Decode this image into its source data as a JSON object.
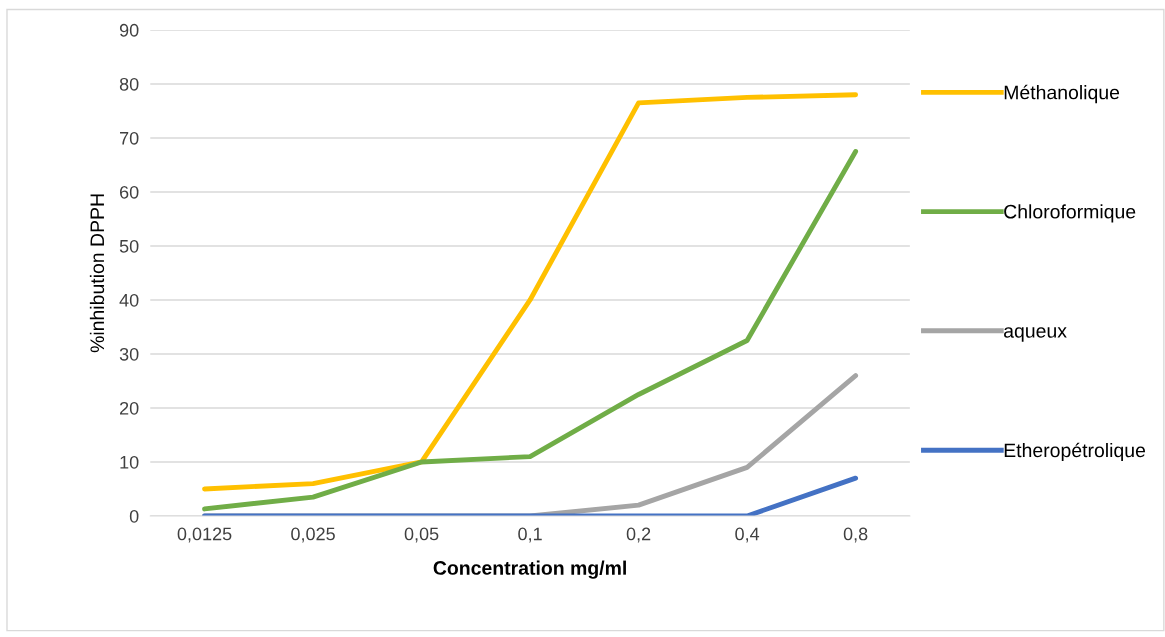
{
  "chart_data": {
    "type": "line",
    "xlabel": "Concentration mg/ml",
    "ylabel": "%inhibution DPPH",
    "categories": [
      "0,0125",
      "0,025",
      "0,05",
      "0,1",
      "0,2",
      "0,4",
      "0,8"
    ],
    "ylim": [
      0,
      90
    ],
    "yticks": [
      0,
      10,
      20,
      30,
      40,
      50,
      60,
      70,
      80,
      90
    ],
    "grid": "y",
    "legend": "right",
    "marker": "none",
    "line_style": "solid",
    "series": [
      {
        "name": "Méthanolique",
        "color": "#ffc000",
        "values": [
          5,
          6,
          10,
          40,
          76.5,
          77.5,
          78
        ]
      },
      {
        "name": "Chloroformique",
        "color": "#70ad47",
        "values": [
          1.3,
          3.5,
          10,
          11,
          22.5,
          32.5,
          67.5
        ]
      },
      {
        "name": "aqueux",
        "color": "#a5a5a5",
        "values": [
          0,
          0,
          0,
          0,
          2,
          9,
          26
        ]
      },
      {
        "name": "Etheropétrolique",
        "color": "#4472c4",
        "values": [
          0,
          0,
          0,
          0,
          0,
          0,
          7
        ]
      }
    ]
  }
}
